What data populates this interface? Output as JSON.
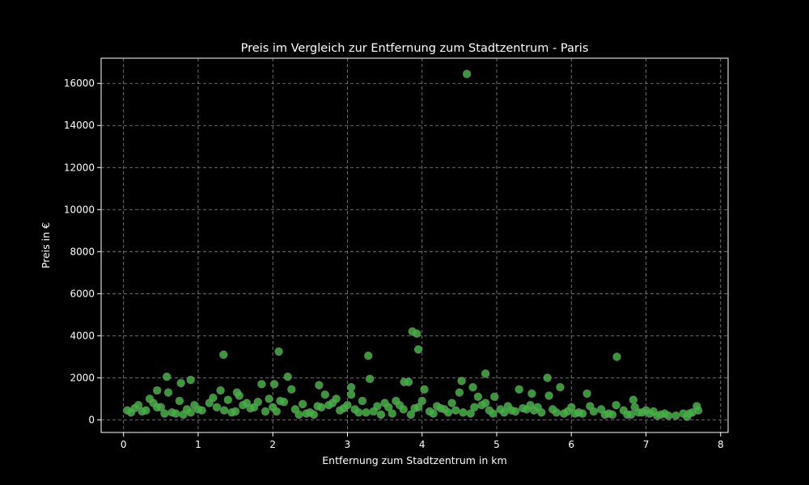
{
  "chart_data": {
    "type": "scatter",
    "title": "Preis im Vergleich zur Entfernung zum Stadtzentrum - Paris",
    "xlabel": "Entfernung zum Stadtzentrum in km",
    "ylabel": "Preis in €",
    "xlim": [
      -0.3,
      8.1
    ],
    "ylim": [
      -600,
      17200
    ],
    "xticks": [
      0,
      1,
      2,
      3,
      4,
      5,
      6,
      7,
      8
    ],
    "yticks": [
      0,
      2000,
      4000,
      6000,
      8000,
      10000,
      12000,
      14000,
      16000
    ],
    "grid": true,
    "point_color": "#3cb83c",
    "edge_color": "#808080",
    "background": "#000000",
    "x": [
      4.6,
      3.87,
      3.93,
      3.95,
      1.34,
      2.08,
      3.28,
      6.61,
      4.85,
      0.58,
      0.9,
      2.2,
      5.68,
      5.85,
      6.21,
      0.77,
      2.02,
      3.3,
      3.76,
      3.82,
      4.53,
      4.68,
      4.03,
      3.05,
      1.85,
      2.62,
      5.7,
      6.83,
      7.68,
      0.45,
      0.6,
      0.35,
      1.3,
      1.52,
      2.25,
      2.7,
      4.5,
      4.97,
      5.3,
      5.47,
      6.6,
      7.0,
      7.3,
      7.58,
      0.05,
      0.15,
      0.25,
      0.4,
      0.5,
      0.65,
      0.75,
      0.85,
      0.95,
      1.05,
      1.15,
      1.25,
      1.4,
      1.5,
      1.6,
      1.7,
      1.8,
      1.9,
      2.0,
      2.1,
      2.3,
      2.4,
      2.5,
      2.6,
      2.8,
      2.9,
      3.0,
      3.1,
      3.2,
      3.35,
      3.4,
      3.5,
      3.6,
      3.7,
      3.9,
      4.0,
      4.1,
      4.2,
      4.3,
      4.4,
      4.55,
      4.7,
      4.8,
      4.9,
      5.05,
      5.15,
      5.25,
      5.35,
      5.5,
      5.6,
      5.75,
      5.9,
      6.0,
      6.1,
      6.3,
      6.4,
      6.5,
      6.7,
      6.8,
      6.95,
      7.05,
      7.1,
      7.2,
      7.4,
      7.5,
      7.62,
      7.7,
      0.2,
      0.55,
      1.0,
      1.45,
      1.95,
      2.45,
      2.95,
      3.45,
      3.95,
      4.45,
      4.95,
      5.45,
      5.95,
      6.45,
      6.9,
      0.3,
      0.8,
      1.2,
      1.75,
      2.15,
      2.55,
      2.85,
      3.15,
      3.55,
      3.85,
      4.25,
      4.65,
      5.1,
      5.55,
      6.05,
      6.55,
      7.15,
      0.1,
      0.7,
      1.35,
      1.65,
      2.35,
      2.75,
      3.25,
      3.65,
      4.15,
      4.75,
      5.2,
      5.8,
      6.25,
      6.75,
      7.25,
      7.55,
      0.45,
      0.9,
      1.55,
      2.05,
      2.65,
      3.05,
      3.75,
      4.35,
      4.85,
      5.4,
      6.15,
      6.85
    ],
    "y": [
      16450,
      4200,
      4100,
      3350,
      3100,
      3250,
      3050,
      3000,
      2200,
      2050,
      1900,
      2050,
      2000,
      1550,
      1250,
      1750,
      1700,
      1950,
      1800,
      1800,
      1850,
      1550,
      1450,
      1550,
      1700,
      1650,
      1150,
      950,
      650,
      1400,
      1300,
      1000,
      1400,
      1300,
      1450,
      1200,
      1300,
      1100,
      1450,
      1250,
      700,
      450,
      200,
      300,
      450,
      550,
      400,
      800,
      600,
      350,
      900,
      500,
      700,
      450,
      800,
      600,
      950,
      400,
      700,
      550,
      850,
      400,
      600,
      900,
      500,
      750,
      350,
      650,
      800,
      450,
      700,
      500,
      900,
      400,
      650,
      800,
      300,
      700,
      550,
      900,
      400,
      650,
      500,
      800,
      350,
      600,
      700,
      450,
      500,
      650,
      400,
      550,
      450,
      350,
      500,
      300,
      600,
      350,
      400,
      500,
      300,
      450,
      250,
      350,
      300,
      400,
      250,
      200,
      300,
      350,
      450,
      700,
      300,
      500,
      350,
      1000,
      300,
      550,
      250,
      600,
      450,
      300,
      700,
      400,
      250,
      350,
      450,
      250,
      1050,
      600,
      850,
      250,
      1000,
      350,
      600,
      250,
      550,
      300,
      350,
      600,
      300,
      250,
      200,
      350,
      300,
      450,
      800,
      250,
      700,
      350,
      900,
      300,
      1100,
      450,
      350,
      650,
      250,
      300,
      150,
      600,
      350,
      1150,
      400,
      600,
      1200,
      500,
      350,
      800,
      500,
      300,
      600
    ]
  }
}
